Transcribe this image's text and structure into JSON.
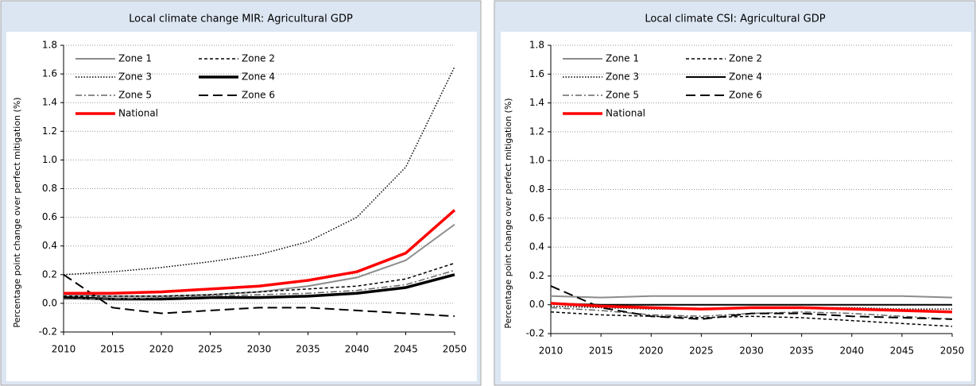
{
  "chart_data": [
    {
      "type": "line",
      "title": "Local climate change MIR: Agricultural GDP",
      "y_label": "Percentage point change over perfect mitigation  (%)",
      "x": [
        2010,
        2015,
        2020,
        2025,
        2030,
        2035,
        2040,
        2045,
        2050
      ],
      "xlim": [
        2010,
        2050
      ],
      "xticks": [
        2010,
        2015,
        2020,
        2025,
        2030,
        2035,
        2040,
        2045,
        2050
      ],
      "ylim": [
        -0.2,
        1.8
      ],
      "yticks": [
        -0.2,
        {
          "value": 0,
          "label": "0.0"
        },
        0.2,
        0.4,
        0.6,
        0.8,
        {
          "value": 1,
          "label": "1.0"
        },
        1.2,
        1.4,
        1.6,
        1.8
      ],
      "grid": true,
      "legend": "upper left",
      "series": [
        {
          "name": "Zone 1",
          "color": "#8c8c8c",
          "style": "solid",
          "values": [
            0.06,
            0.05,
            0.05,
            0.06,
            0.08,
            0.12,
            0.18,
            0.3,
            0.55
          ]
        },
        {
          "name": "Zone 2",
          "color": "#000000",
          "style": "dash",
          "values": [
            0.05,
            0.05,
            0.05,
            0.06,
            0.08,
            0.1,
            0.12,
            0.17,
            0.28
          ]
        },
        {
          "name": "Zone 3",
          "color": "#000000",
          "style": "dot",
          "values": [
            0.2,
            0.22,
            0.25,
            0.29,
            0.34,
            0.43,
            0.6,
            0.95,
            1.65
          ]
        },
        {
          "name": "Zone 4",
          "color": "#000000",
          "style": "thick",
          "values": [
            0.04,
            0.03,
            0.03,
            0.04,
            0.04,
            0.05,
            0.07,
            0.11,
            0.2
          ]
        },
        {
          "name": "Zone 5",
          "color": "#666666",
          "style": "dashdot",
          "values": [
            0.03,
            0.03,
            0.04,
            0.05,
            0.06,
            0.07,
            0.09,
            0.13,
            0.23
          ]
        },
        {
          "name": "Zone 6",
          "color": "#000000",
          "style": "longdash",
          "values": [
            0.2,
            -0.03,
            -0.07,
            -0.05,
            -0.03,
            -0.03,
            -0.05,
            -0.07,
            -0.09
          ]
        },
        {
          "name": "National",
          "color": "#ff0000",
          "style": "thick",
          "values": [
            0.07,
            0.07,
            0.08,
            0.1,
            0.12,
            0.16,
            0.22,
            0.35,
            0.65
          ]
        }
      ]
    },
    {
      "type": "line",
      "title": "Local climate CSI: Agricultural GDP",
      "y_label": "Percentage point change  over perfect mitigation  (%)",
      "x": [
        2010,
        2015,
        2020,
        2025,
        2030,
        2035,
        2040,
        2045,
        2050
      ],
      "xlim": [
        2010,
        2050
      ],
      "xticks": [
        2010,
        2015,
        2020,
        2025,
        2030,
        2035,
        2040,
        2045,
        2050
      ],
      "ylim": [
        -0.2,
        1.8
      ],
      "yticks": [
        -0.2,
        {
          "value": 0,
          "label": "0.0"
        },
        0.2,
        0.4,
        0.6,
        0.8,
        {
          "value": 1,
          "label": "1.0"
        },
        1.2,
        1.4,
        1.6,
        1.8
      ],
      "grid": true,
      "legend": "upper left",
      "series": [
        {
          "name": "Zone 1",
          "color": "#8c8c8c",
          "style": "solid",
          "values": [
            0.06,
            0.05,
            0.06,
            0.06,
            0.06,
            0.06,
            0.06,
            0.06,
            0.05
          ]
        },
        {
          "name": "Zone 2",
          "color": "#000000",
          "style": "dash",
          "values": [
            -0.05,
            -0.07,
            -0.08,
            -0.09,
            -0.08,
            -0.09,
            -0.11,
            -0.13,
            -0.15
          ]
        },
        {
          "name": "Zone 3",
          "color": "#000000",
          "style": "dot",
          "values": [
            -0.01,
            -0.02,
            -0.03,
            -0.03,
            -0.02,
            -0.02,
            -0.02,
            -0.03,
            -0.03
          ]
        },
        {
          "name": "Zone 4",
          "color": "#000000",
          "style": "solid",
          "values": [
            0.01,
            0.0,
            0.0,
            0.0,
            0.0,
            0.0,
            0.0,
            0.0,
            0.0
          ]
        },
        {
          "name": "Zone 5",
          "color": "#666666",
          "style": "dashdot",
          "values": [
            -0.02,
            -0.04,
            -0.07,
            -0.08,
            -0.06,
            -0.05,
            -0.06,
            -0.08,
            -0.1
          ]
        },
        {
          "name": "Zone 6",
          "color": "#000000",
          "style": "longdash",
          "values": [
            0.13,
            -0.02,
            -0.08,
            -0.1,
            -0.06,
            -0.06,
            -0.08,
            -0.09,
            -0.1
          ]
        },
        {
          "name": "National",
          "color": "#ff0000",
          "style": "thick",
          "values": [
            0.01,
            -0.01,
            -0.02,
            -0.03,
            -0.02,
            -0.02,
            -0.03,
            -0.04,
            -0.05
          ]
        }
      ]
    }
  ]
}
